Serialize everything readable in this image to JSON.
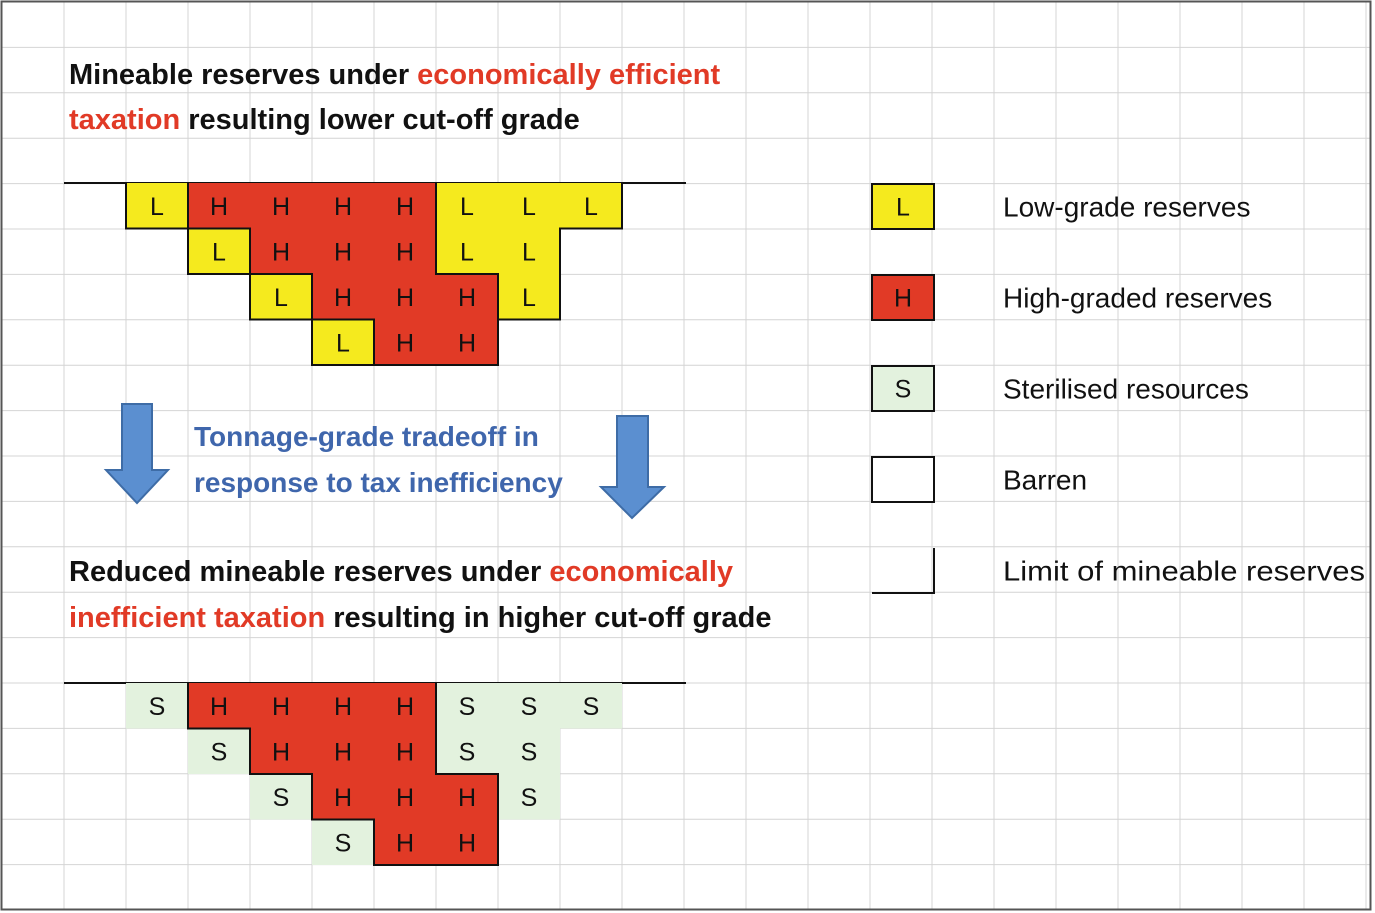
{
  "top_title": {
    "line1": [
      {
        "text": "Mineable reserves under ",
        "style": "plain"
      },
      {
        "text": "economically efficient",
        "style": "accent"
      }
    ],
    "line2": [
      {
        "text": "taxation",
        "style": "accent"
      },
      {
        "text": " resulting lower cut-off grade",
        "style": "plain"
      }
    ]
  },
  "bottom_title": {
    "line1": [
      {
        "text": "Reduced mineable reserves under ",
        "style": "plain"
      },
      {
        "text": "economically",
        "style": "accent"
      }
    ],
    "line2": [
      {
        "text": "inefficient taxation",
        "style": "accent"
      },
      {
        "text": " resulting in higher cut-off grade",
        "style": "plain"
      }
    ]
  },
  "tradeoff_text": {
    "line1": "Tonnage-grade tradeoff in",
    "line2": "response to tax inefficiency"
  },
  "top_block": {
    "rows": [
      [
        "L",
        "H",
        "H",
        "H",
        "H",
        "L",
        "L",
        "L"
      ],
      [
        "L",
        "H",
        "H",
        "H",
        "L",
        "L"
      ],
      [
        "L",
        "H",
        "H",
        "H",
        "L"
      ],
      [
        "L",
        "H",
        "H"
      ]
    ],
    "row_start_col": [
      0,
      1,
      2,
      3
    ]
  },
  "bottom_block": {
    "rows": [
      [
        "S",
        "H",
        "H",
        "H",
        "H",
        "S",
        "S",
        "S"
      ],
      [
        "S",
        "H",
        "H",
        "H",
        "S",
        "S"
      ],
      [
        "S",
        "H",
        "H",
        "H",
        "S"
      ],
      [
        "S",
        "H",
        "H"
      ]
    ],
    "row_start_col": [
      0,
      1,
      2,
      3
    ]
  },
  "legend": {
    "items": [
      {
        "symbol": "L",
        "label": "Low-grade reserves",
        "kind": "low"
      },
      {
        "symbol": "H",
        "label": "High-graded reserves",
        "kind": "high"
      },
      {
        "symbol": "S",
        "label": "Sterilised resources",
        "kind": "sterilised"
      },
      {
        "symbol": "",
        "label": "Barren",
        "kind": "barren"
      },
      {
        "symbol": "",
        "label": "Limit of mineable reserves",
        "kind": "limit"
      }
    ]
  },
  "colors": {
    "low": "#f5ea1e",
    "high": "#e13a26",
    "sterilised": "#e3f2de",
    "accent_text": "#e13a26",
    "blue_text": "#3f66ac",
    "arrow": "#5b8fd0",
    "arrow_edge": "#3e6ca6",
    "gridline": "#d4d4d4"
  }
}
